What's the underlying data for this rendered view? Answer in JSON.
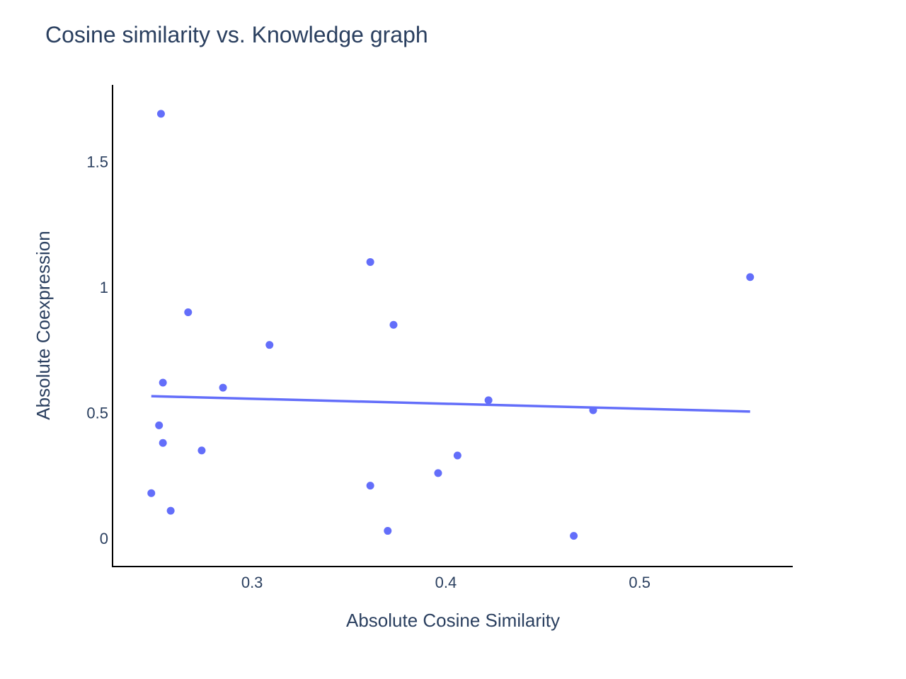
{
  "chart_data": {
    "type": "scatter",
    "title": "Cosine similarity vs. Knowledge graph",
    "xlabel": "Absolute Cosine Similarity",
    "ylabel": "Absolute Coexpression",
    "xlim": [
      0.228,
      0.579
    ],
    "ylim": [
      -0.112,
      1.805
    ],
    "x_ticks": [
      {
        "value": 0.3,
        "label": "0.3"
      },
      {
        "value": 0.4,
        "label": "0.4"
      },
      {
        "value": 0.5,
        "label": "0.5"
      }
    ],
    "y_ticks": [
      {
        "value": 0,
        "label": "0"
      },
      {
        "value": 0.5,
        "label": "0.5"
      },
      {
        "value": 1,
        "label": "1"
      },
      {
        "value": 1.5,
        "label": "1.5"
      }
    ],
    "grid": false,
    "legend": "none",
    "marker_color": "#636efa",
    "line_color": "#636efa",
    "points": [
      {
        "x": 0.253,
        "y": 1.69
      },
      {
        "x": 0.361,
        "y": 1.1
      },
      {
        "x": 0.557,
        "y": 1.04
      },
      {
        "x": 0.267,
        "y": 0.9
      },
      {
        "x": 0.373,
        "y": 0.85
      },
      {
        "x": 0.309,
        "y": 0.77
      },
      {
        "x": 0.254,
        "y": 0.62
      },
      {
        "x": 0.285,
        "y": 0.6
      },
      {
        "x": 0.422,
        "y": 0.55
      },
      {
        "x": 0.476,
        "y": 0.51
      },
      {
        "x": 0.252,
        "y": 0.45
      },
      {
        "x": 0.254,
        "y": 0.38
      },
      {
        "x": 0.274,
        "y": 0.35
      },
      {
        "x": 0.406,
        "y": 0.33
      },
      {
        "x": 0.396,
        "y": 0.26
      },
      {
        "x": 0.361,
        "y": 0.21
      },
      {
        "x": 0.248,
        "y": 0.18
      },
      {
        "x": 0.258,
        "y": 0.11
      },
      {
        "x": 0.37,
        "y": 0.03
      },
      {
        "x": 0.466,
        "y": 0.01
      }
    ],
    "trendline": {
      "x": [
        0.248,
        0.557
      ],
      "y": [
        0.566,
        0.505
      ]
    }
  }
}
